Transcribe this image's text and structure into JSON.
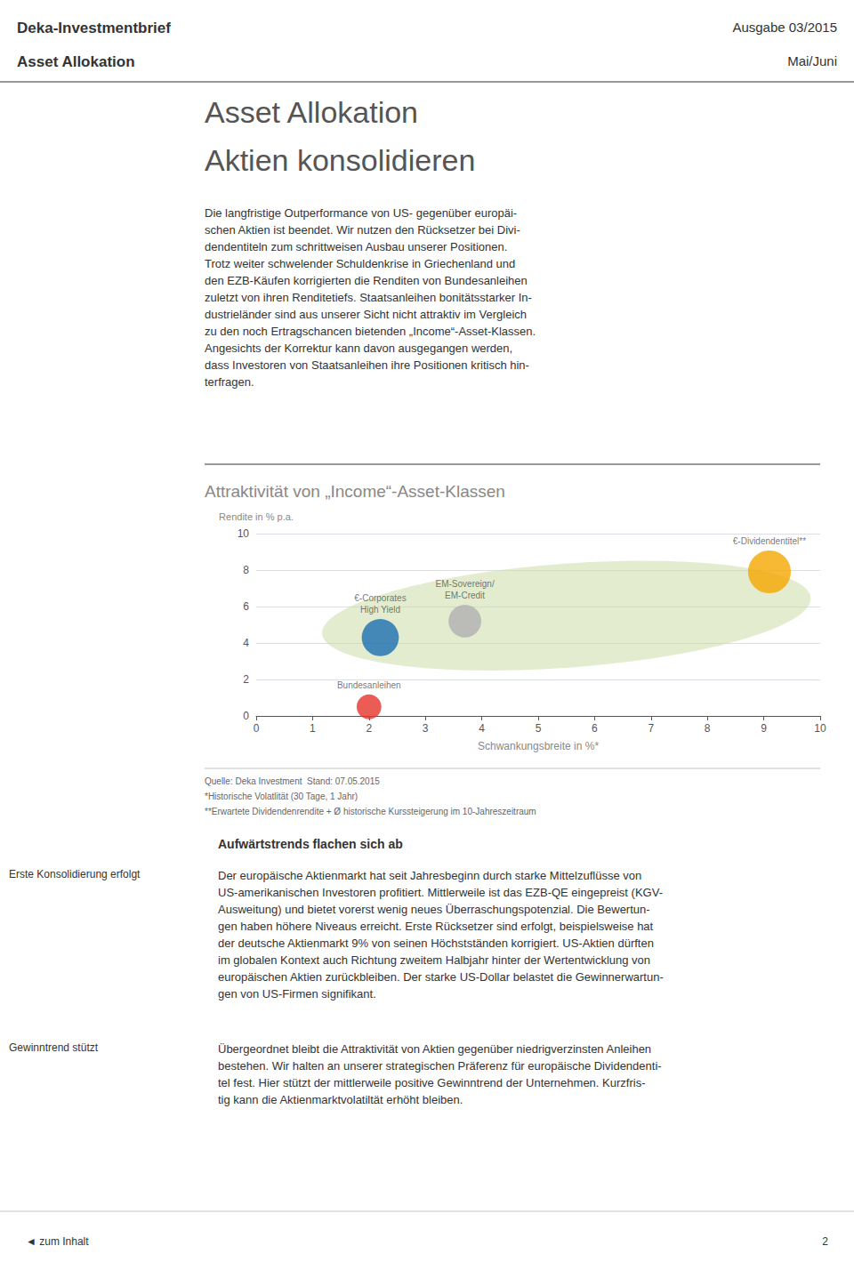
{
  "page": {
    "header_title": "Deka-Investmentbrief",
    "header_subtitle": "Asset Allokation",
    "header_right1": "Ausgabe 03/2015",
    "header_right2": "Mai/Juni",
    "main_title1": "Asset Allokation",
    "main_title2": "Aktien konsolidieren",
    "body_text": "Die langfristige Outperformance von US- gegenüber europäi-\nschen Aktien ist beendet. Wir nutzen den Rücksetzer bei Divi-\ndendentiteln zum schrittweisen Ausbau unserer Positionen.\nTrotz weiter schwelender Schuldenkrise in Griechenland und\nden EZB-Käufen korrigierten die Renditen von Bundesanleihen\nzuletzt von ihren Renditetiefs. Staatsanleihen bonitätsstarker In-\ndustrieländer sind aus unserer Sicht nicht attraktiv im Vergleich\nzu den noch Ertragschancen bietenden „Income“-Asset-Klassen.\nAngesichts der Korrektur kann davon ausgegangen werden,\ndass Investoren von Staatsanleihen ihre Positionen kritisch hin-\nterfragen.",
    "footnote1": "Quelle: Deka Investment  Stand: 07.05.2015",
    "footnote2": "*Historische Volatlität (30 Tage, 1 Jahr)",
    "footnote3": "**Erwartete Dividendenrendite + Ø historische Kurssteigerung im 10-Jahreszeitraum",
    "section_header": "Aufwärtstrends flachen sich ab",
    "side_label1": "Erste Konsolidierung erfolgt",
    "side_label2": "Gewinntrend stützt",
    "body2": "Der europäische Aktienmarkt hat seit Jahresbeginn durch starke Mittelzuflüsse von\nUS-amerikanischen Investoren profitiert. Mittlerweile ist das EZB-QE eingepreist (KGV-\nAusweitung) und bietet vorerst wenig neues Überraschungspotenzial. Die Bewertun-\ngen haben höhere Niveaus erreicht. Erste Rücksetzer sind erfolgt, beispielsweise hat\nder deutsche Aktienmarkt 9% von seinen Höchstständen korrigiert. US-Aktien dürften\nim globalen Kontext auch Richtung zweitem Halbjahr hinter der Wertentwicklung von\neuropäischen Aktien zurückbleiben. Der starke US-Dollar belastet die Gewinnerwartun-\ngen von US-Firmen signifikant.",
    "body3": "Übergeordnet bleibt die Attraktivität von Aktien gegenüber niedrigverzinsten Anleihen\nbestehen. Wir halten an unserer strategischen Präferenz für europäische Dividendenti-\ntel fest. Hier stützt der mittlerweile positive Gewinntrend der Unternehmen. Kurzfris-\ntig kann die Aktienmarktvolatiltät erhöht bleiben.",
    "footer_left": "◄ zum Inhalt",
    "footer_right": "2"
  },
  "chart_data": {
    "type": "scatter",
    "title": "Attraktivität von „Income“-Asset-Klassen",
    "xlabel": "Schwankungsbreite in %*",
    "ylabel": "Rendite in % p.a.",
    "xlim": [
      0,
      10
    ],
    "ylim": [
      0,
      10
    ],
    "xticks": [
      0,
      1,
      2,
      3,
      4,
      5,
      6,
      7,
      8,
      9,
      10
    ],
    "yticks": [
      0,
      2,
      4,
      6,
      8,
      10
    ],
    "grid": true,
    "x": [
      2.0,
      2.2,
      3.7,
      9.1
    ],
    "values": [
      0.5,
      4.3,
      5.2,
      7.9
    ],
    "sizes": [
      400,
      900,
      700,
      1200
    ],
    "colors": [
      "#e63329",
      "#1a6faf",
      "#b0b0b0",
      "#f5a800"
    ],
    "point_labels": [
      "Bundesanleihen",
      "€-Corporates\nHigh Yield",
      "EM-Sovereign/\nEM-Credit",
      "€-Dividendentitel**"
    ],
    "ellipse": {
      "cx": 5.5,
      "cy": 5.5,
      "width": 9.0,
      "height": 5.5,
      "angle": 20,
      "color": "#c8d9a0"
    }
  }
}
